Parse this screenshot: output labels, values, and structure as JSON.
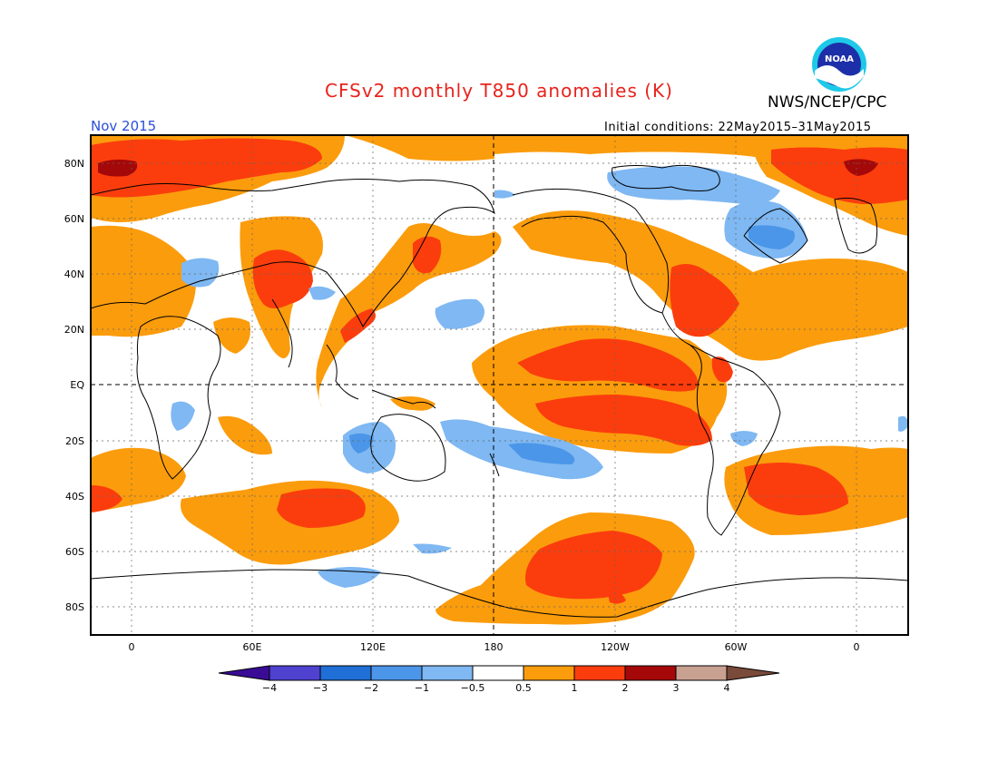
{
  "header": {
    "title": "CFSv2 monthly T850 anomalies (K)",
    "agency": "NWS/NCEP/CPC",
    "month": "Nov 2015",
    "initial_conditions": "Initial conditions: 22May2015–31May2015",
    "logo_text": "NOAA"
  },
  "colors": {
    "title": "#e8231c",
    "month": "#2b4fd8",
    "neg4": "#3a0c96",
    "neg3": "#4e42cf",
    "neg2": "#1f6fd6",
    "neg1": "#4b96e8",
    "neg05": "#7fb8f2",
    "neutral": "#ffffff",
    "pos05": "#fb9c0c",
    "pos1": "#fb3d0d",
    "pos2": "#a50808",
    "pos3": "#c9a191",
    "pos4": "#7a4a3a"
  },
  "lat_labels": [
    "80N",
    "60N",
    "40N",
    "20N",
    "EQ",
    "20S",
    "40S",
    "60S",
    "80S"
  ],
  "lon_labels": [
    "0",
    "60E",
    "120E",
    "180",
    "120W",
    "60W",
    "0"
  ],
  "colorbar": {
    "labels": [
      "−4",
      "−3",
      "−2",
      "−1",
      "−0.5",
      "0.5",
      "1",
      "2",
      "3",
      "4"
    ]
  }
}
